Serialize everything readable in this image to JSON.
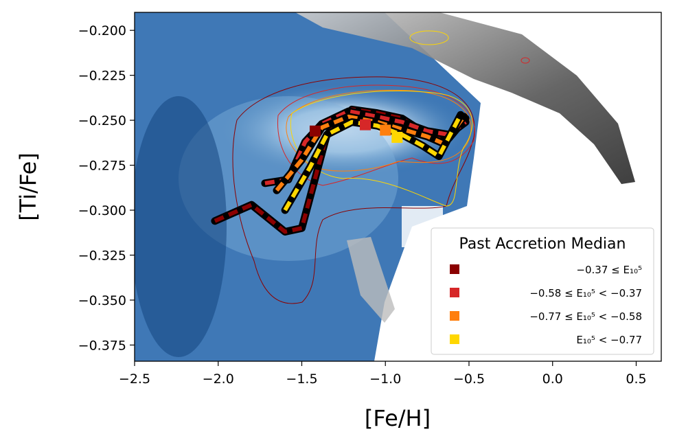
{
  "chart_data": {
    "type": "line",
    "title": "",
    "xlabel": "[Fe/H]",
    "ylabel": "[Ti/Fe]",
    "xlim": [
      -2.5,
      0.65
    ],
    "ylim": [
      -0.384,
      -0.19
    ],
    "x_ticks": [
      -2.5,
      -2.0,
      -1.5,
      -1.0,
      -0.5,
      0.0,
      0.5
    ],
    "x_tick_labels": [
      "−2.5",
      "−2.0",
      "−1.5",
      "−1.0",
      "−0.5",
      "0.0",
      "0.5"
    ],
    "y_ticks": [
      -0.2,
      -0.225,
      -0.25,
      -0.275,
      -0.3,
      -0.325,
      -0.35,
      -0.375
    ],
    "y_tick_labels": [
      "−0.200",
      "−0.225",
      "−0.250",
      "−0.275",
      "−0.300",
      "−0.325",
      "−0.350",
      "−0.375"
    ],
    "background": "2D density histograms: blue (accreted population) and grey (in-situ population), with colored contours per series",
    "legend": {
      "title": "Past Accretion Median",
      "placement": "lower right",
      "entries": [
        {
          "label": "−0.37 ≤ E₁₀⁵",
          "color": "#8b0000"
        },
        {
          "label": "−0.58 ≤ E₁₀⁵ < −0.37",
          "color": "#d62728"
        },
        {
          "label": "−0.77 ≤ E₁₀⁵ < −0.58",
          "color": "#ff7f0e"
        },
        {
          "label": "E₁₀⁵ < −0.77",
          "color": "#ffd700"
        }
      ]
    },
    "series": [
      {
        "color": "#8b0000",
        "x": [
          -2.02,
          -1.8,
          -1.6,
          -1.5,
          -1.35,
          -1.2,
          -1.05,
          -0.9,
          -0.75,
          -0.62,
          -0.52
        ],
        "y": [
          -0.306,
          -0.297,
          -0.312,
          -0.31,
          -0.258,
          -0.244,
          -0.246,
          -0.249,
          -0.258,
          -0.26,
          -0.249
        ],
        "median_marker": {
          "x": -1.42,
          "y": -0.256
        }
      },
      {
        "color": "#d62728",
        "x": [
          -1.72,
          -1.58,
          -1.48,
          -1.38,
          -1.22,
          -1.05,
          -0.9,
          -0.75,
          -0.62,
          -0.52
        ],
        "y": [
          -0.285,
          -0.283,
          -0.262,
          -0.252,
          -0.245,
          -0.248,
          -0.251,
          -0.256,
          -0.258,
          -0.251
        ],
        "median_marker": {
          "x": -1.12,
          "y": -0.2525
        }
      },
      {
        "color": "#ff7f0e",
        "x": [
          -1.65,
          -1.5,
          -1.38,
          -1.22,
          -1.05,
          -0.9,
          -0.75,
          -0.65,
          -0.53
        ],
        "y": [
          -0.289,
          -0.272,
          -0.254,
          -0.248,
          -0.251,
          -0.255,
          -0.259,
          -0.263,
          -0.248
        ],
        "median_marker": {
          "x": -1.0,
          "y": -0.2555
        }
      },
      {
        "color": "#ffd700",
        "x": [
          -1.6,
          -1.45,
          -1.35,
          -1.2,
          -1.05,
          -0.9,
          -0.78,
          -0.68,
          -0.55
        ],
        "y": [
          -0.3,
          -0.276,
          -0.258,
          -0.251,
          -0.253,
          -0.258,
          -0.264,
          -0.27,
          -0.247
        ],
        "median_marker": {
          "x": -0.93,
          "y": -0.2595
        }
      }
    ]
  }
}
